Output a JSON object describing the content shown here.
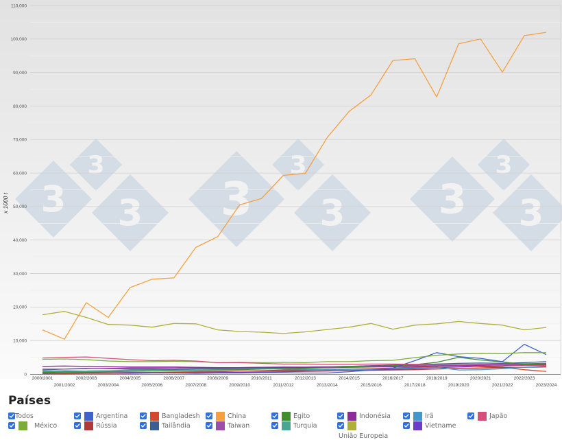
{
  "chart_data": {
    "type": "line",
    "title": "",
    "xlabel": "",
    "ylabel": "x 1000 t",
    "ylim": [
      0,
      110000
    ],
    "yticks": [
      0,
      10000,
      20000,
      30000,
      40000,
      50000,
      60000,
      70000,
      80000,
      90000,
      100000,
      110000
    ],
    "ytick_labels": [
      "0",
      "10,000",
      "20,000",
      "30,000",
      "40,000",
      "50,000",
      "60,000",
      "70,000",
      "80,000",
      "90,000",
      "100,000",
      "110,000"
    ],
    "grid": true,
    "legend_position": "bottom",
    "categories": [
      "2000/2001",
      "2001/2002",
      "2002/2003",
      "2003/2004",
      "2004/2005",
      "2005/2006",
      "2006/2007",
      "2007/2008",
      "2008/2009",
      "2009/2010",
      "2010/2011",
      "2011/2012",
      "2012/2013",
      "2013/2014",
      "2014/2015",
      "2015/2016",
      "2016/2017",
      "2017/2018",
      "2018/2019",
      "2019/2020",
      "2020/2021",
      "2021/2022",
      "2022/2023",
      "2023/2024"
    ],
    "series": [
      {
        "name": "China",
        "color": "#f4a040",
        "values": [
          13200,
          10400,
          21300,
          16900,
          25800,
          28300,
          28700,
          37800,
          41000,
          50500,
          52400,
          59300,
          59900,
          70600,
          78400,
          83300,
          93600,
          94100,
          82700,
          98600,
          100000,
          90100,
          101000,
          102000
        ]
      },
      {
        "name": "União Europeia",
        "color": "#aeb03a",
        "values": [
          17700,
          18700,
          16900,
          14800,
          14600,
          14000,
          15100,
          15000,
          13200,
          12700,
          12500,
          12100,
          12600,
          13300,
          14000,
          15100,
          13400,
          14600,
          15000,
          15700,
          15100,
          14600,
          13200,
          13900
        ]
      },
      {
        "name": "Japão",
        "color": "#d4507a",
        "values": [
          4800,
          5000,
          5100,
          4700,
          4300,
          4000,
          4100,
          3900,
          3400,
          3400,
          3200,
          3000,
          3000,
          2900,
          2900,
          3000,
          3000,
          2900,
          2800,
          2700,
          2800,
          2700,
          2600,
          2600
        ]
      },
      {
        "name": "México",
        "color": "#7aac38",
        "values": [
          4400,
          4500,
          4300,
          3900,
          3700,
          3700,
          3800,
          3700,
          3400,
          3500,
          3400,
          3500,
          3400,
          3700,
          3700,
          4000,
          4100,
          4900,
          5600,
          6000,
          6200,
          6100,
          6400,
          6400
        ]
      },
      {
        "name": "Argentina",
        "color": "#3f63c8",
        "values": [
          200,
          300,
          300,
          300,
          400,
          400,
          300,
          200,
          300,
          300,
          400,
          400,
          300,
          300,
          700,
          1200,
          1800,
          4000,
          6400,
          5200,
          4700,
          3700,
          8900,
          5800
        ]
      },
      {
        "name": "Egito",
        "color": "#3f8f2f",
        "values": [
          500,
          600,
          600,
          700,
          800,
          900,
          1000,
          1100,
          1200,
          1300,
          1500,
          1600,
          1700,
          1900,
          2100,
          2300,
          2500,
          2800,
          3500,
          5000,
          4200,
          3600,
          2900,
          3100
        ]
      },
      {
        "name": "Indonésia",
        "color": "#8e2b9a",
        "values": [
          2300,
          2400,
          2300,
          2200,
          2100,
          2100,
          2100,
          2000,
          1900,
          1900,
          2000,
          2000,
          1900,
          1900,
          2000,
          2100,
          2200,
          2300,
          2400,
          2500,
          2600,
          2700,
          2800,
          2900
        ]
      },
      {
        "name": "Taiwan",
        "color": "#9b50a8",
        "values": [
          1500,
          1500,
          1600,
          1700,
          1800,
          1800,
          1800,
          1900,
          1900,
          1900,
          2000,
          2100,
          2100,
          2200,
          2300,
          2400,
          2500,
          2600,
          2700,
          2800,
          2900,
          3000,
          3100,
          3200
        ]
      },
      {
        "name": "Tailândia",
        "color": "#3a5f90",
        "values": [
          1200,
          1500,
          1700,
          1600,
          1500,
          1500,
          1400,
          1600,
          1700,
          1800,
          1900,
          2000,
          2100,
          2200,
          2300,
          2500,
          2700,
          2800,
          3000,
          3200,
          3300,
          3200,
          3400,
          3700
        ]
      },
      {
        "name": "Turquia",
        "color": "#4aa593",
        "values": [
          900,
          1000,
          900,
          1000,
          1200,
          1300,
          1400,
          1500,
          1400,
          1500,
          1700,
          1800,
          1900,
          2000,
          2200,
          2300,
          2400,
          2600,
          2700,
          2800,
          2900,
          2800,
          2700,
          2900
        ]
      },
      {
        "name": "Irã",
        "color": "#4498c8",
        "values": [
          700,
          800,
          900,
          1000,
          1100,
          1200,
          1300,
          1400,
          1500,
          1600,
          1600,
          1500,
          1400,
          1300,
          1400,
          1500,
          1600,
          1800,
          2000,
          1200,
          1300,
          1600,
          2000,
          2400
        ]
      },
      {
        "name": "Rússia",
        "color": "#b03a3a",
        "values": [
          300,
          300,
          400,
          400,
          500,
          500,
          600,
          700,
          800,
          900,
          900,
          1000,
          1000,
          1000,
          1100,
          1100,
          1200,
          1300,
          1500,
          1700,
          1800,
          1900,
          2000,
          2100
        ]
      },
      {
        "name": "Bangladesh",
        "color": "#d24a2a",
        "values": [
          100,
          100,
          200,
          200,
          300,
          400,
          500,
          600,
          700,
          900,
          1000,
          1200,
          1300,
          1400,
          1500,
          1600,
          1800,
          2000,
          2300,
          2500,
          2200,
          2000,
          1300,
          800
        ]
      },
      {
        "name": "Vietname",
        "color": "#6a3cc8",
        "values": [
          100,
          100,
          200,
          200,
          200,
          300,
          300,
          400,
          500,
          500,
          600,
          700,
          800,
          900,
          1100,
          1200,
          1400,
          1600,
          1900,
          2100,
          2300,
          2400,
          2600,
          2800
        ]
      }
    ]
  },
  "watermark": {
    "glyph": "3",
    "color": "#cfd8e3"
  },
  "legend": {
    "title": "Países",
    "checkbox_color": "#2f6fe0",
    "items": [
      {
        "key": "todos",
        "label": "Todos",
        "checked": true,
        "swatch": null
      },
      {
        "key": "argentina",
        "label": "Argentina",
        "checked": true,
        "swatch": "#3f63c8"
      },
      {
        "key": "bangladesh",
        "label": "Bangladesh",
        "checked": true,
        "swatch": "#d24a2a"
      },
      {
        "key": "china",
        "label": "China",
        "checked": true,
        "swatch": "#f4a040"
      },
      {
        "key": "egito",
        "label": "Egito",
        "checked": true,
        "swatch": "#3f8f2f"
      },
      {
        "key": "indonesia",
        "label": "Indonésia",
        "checked": true,
        "swatch": "#8e2b9a"
      },
      {
        "key": "ira",
        "label": "Irã",
        "checked": true,
        "swatch": "#4498c8"
      },
      {
        "key": "japao",
        "label": "Japão",
        "checked": true,
        "swatch": "#d4507a"
      },
      {
        "key": "mexico",
        "label": "México",
        "checked": true,
        "swatch": "#7aac38"
      },
      {
        "key": "russia",
        "label": "Rússia",
        "checked": true,
        "swatch": "#b03a3a"
      },
      {
        "key": "tailandia",
        "label": "Tailândia",
        "checked": true,
        "swatch": "#3a5f90"
      },
      {
        "key": "taiwan",
        "label": "Taiwan",
        "checked": true,
        "swatch": "#9b50a8"
      },
      {
        "key": "turquia",
        "label": "Turquia",
        "checked": true,
        "swatch": "#4aa593"
      },
      {
        "key": "uniao_europeia",
        "label": "",
        "sub_label": "União Europeia",
        "checked": true,
        "swatch": "#aeb03a"
      },
      {
        "key": "vietname",
        "label": "Vietname",
        "checked": true,
        "swatch": "#6a3cc8"
      }
    ]
  }
}
